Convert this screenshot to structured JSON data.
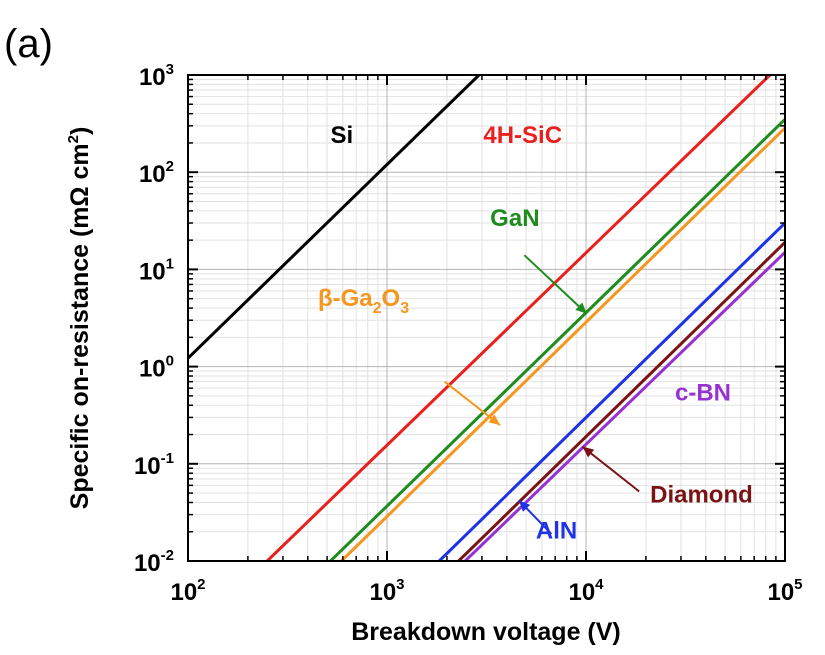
{
  "panel_label": "(a)",
  "chart_data": {
    "type": "line",
    "title": "",
    "xlabel": "Breakdown voltage (V)",
    "ylabel": "Specific on-resistance (mΩ cm²)",
    "ylabel_parts": {
      "main": "Specific on-resistance (mΩ cm",
      "sup": "2",
      "close": ")"
    },
    "xscale": "log",
    "yscale": "log",
    "xlim": [
      100,
      100000
    ],
    "ylim": [
      0.01,
      1000
    ],
    "x_ticks": [
      {
        "value": 100,
        "base": "10",
        "exp": "2"
      },
      {
        "value": 1000,
        "base": "10",
        "exp": "3"
      },
      {
        "value": 10000,
        "base": "10",
        "exp": "4"
      },
      {
        "value": 100000,
        "base": "10",
        "exp": "5"
      }
    ],
    "y_ticks": [
      {
        "value": 0.01,
        "base": "10",
        "exp": "-2"
      },
      {
        "value": 0.1,
        "base": "10",
        "exp": "-1"
      },
      {
        "value": 1,
        "base": "10",
        "exp": "0"
      },
      {
        "value": 10,
        "base": "10",
        "exp": "1"
      },
      {
        "value": 100,
        "base": "10",
        "exp": "2"
      },
      {
        "value": 1000,
        "base": "10",
        "exp": "3"
      }
    ],
    "grid": true,
    "series": [
      {
        "name": "Si",
        "color": "#000000",
        "x": [
          100,
          2900
        ],
        "y": [
          1.22,
          1000
        ]
      },
      {
        "name": "4H-SiC",
        "color": "#e8201e",
        "x": [
          250,
          84000
        ],
        "y": [
          0.01,
          1000
        ]
      },
      {
        "name": "GaN",
        "color": "#1e8c1e",
        "x": [
          520,
          100000
        ],
        "y": [
          0.01,
          350
        ]
      },
      {
        "name": "β-Ga2O3",
        "color": "#f5961e",
        "x": [
          590,
          100000
        ],
        "y": [
          0.01,
          285
        ]
      },
      {
        "name": "AlN",
        "color": "#1e32e6",
        "x": [
          1830,
          100000
        ],
        "y": [
          0.01,
          30
        ]
      },
      {
        "name": "Diamond",
        "color": "#7a1414",
        "x": [
          2290,
          100000
        ],
        "y": [
          0.01,
          19
        ]
      },
      {
        "name": "c-BN",
        "color": "#9632d2",
        "x": [
          2470,
          100000
        ],
        "y": [
          0.01,
          15
        ]
      }
    ],
    "annotations": [
      {
        "id": "si",
        "color": "#000000",
        "text": "Si",
        "at": [
          520,
          200
        ],
        "arrow": false
      },
      {
        "id": "sic",
        "color": "#e8201e",
        "text": "4H-SiC",
        "at": [
          3050,
          200
        ],
        "arrow": false
      },
      {
        "id": "gan",
        "color": "#1e8c1e",
        "text": "GaN",
        "at": [
          3300,
          28
        ],
        "arrow": true,
        "arrow_from": [
          4900,
          14
        ],
        "arrow_to": [
          10100,
          3.5
        ]
      },
      {
        "id": "ga2o3",
        "color": "#f5961e",
        "text": "β-Ga",
        "sub1": "2",
        "mid": "O",
        "sub2": "3",
        "at": [
          450,
          4.2
        ],
        "arrow": true,
        "arrow_from": [
          1950,
          0.7
        ],
        "arrow_to": [
          3700,
          0.25
        ]
      },
      {
        "id": "cbn",
        "color": "#9632d2",
        "text": "c-BN",
        "at": [
          28000,
          0.45
        ],
        "arrow": false
      },
      {
        "id": "diamond",
        "color": "#7a1414",
        "text": "Diamond",
        "at": [
          21000,
          0.04
        ],
        "arrow": true,
        "arrow_from": [
          18500,
          0.052
        ],
        "arrow_to": [
          9600,
          0.15
        ]
      },
      {
        "id": "aln",
        "color": "#1e32e6",
        "text": "AlN",
        "at": [
          5600,
          0.017
        ],
        "arrow": true,
        "arrow_from": [
          6700,
          0.019
        ],
        "arrow_to": [
          4600,
          0.042
        ]
      }
    ]
  }
}
